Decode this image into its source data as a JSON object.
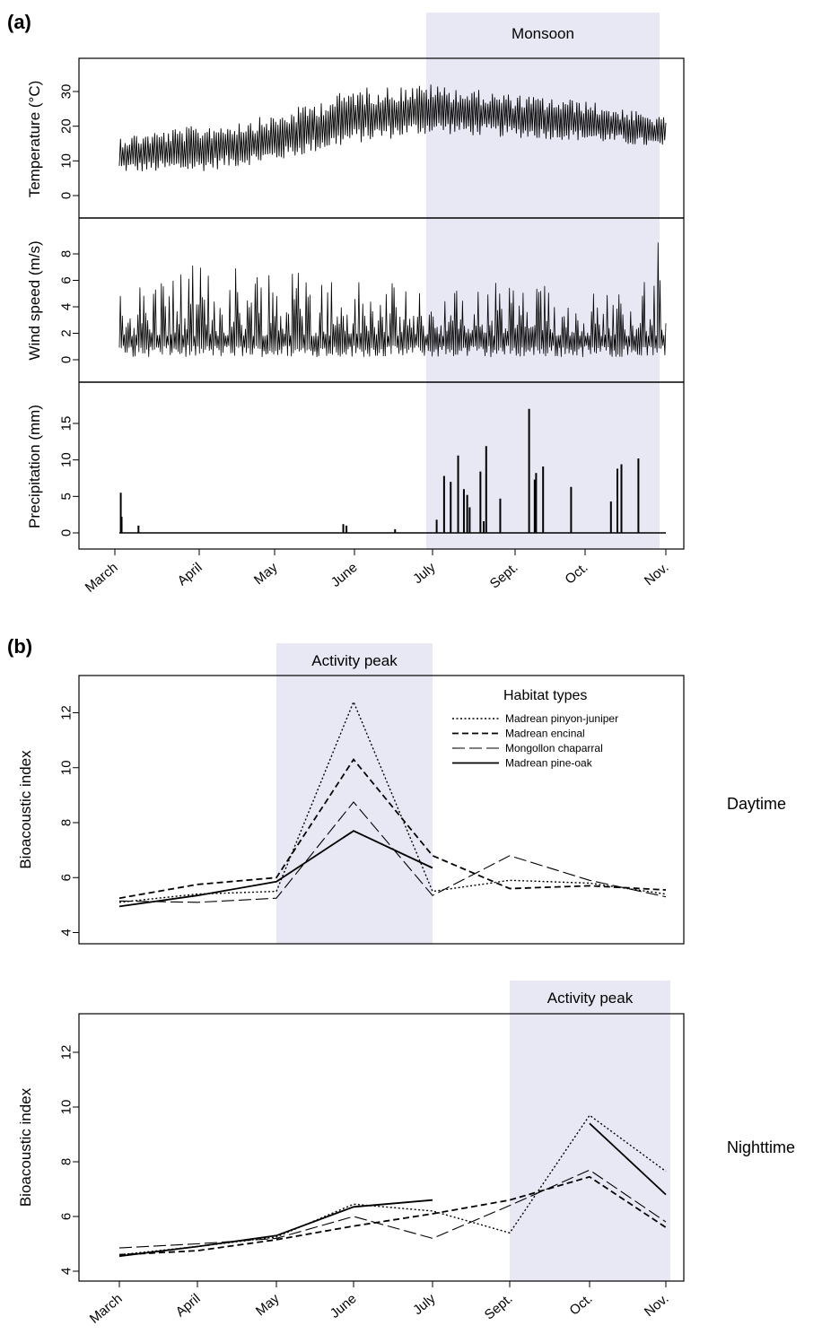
{
  "panel_a": {
    "label": "(a)",
    "shade_label": "Monsoon",
    "x_months": [
      "March",
      "April",
      "May",
      "June",
      "July",
      "Sept.",
      "Oct.",
      "Nov."
    ]
  },
  "panel_b": {
    "label": "(b)"
  },
  "colors": {
    "shade": "#e8e8f4",
    "line": "#000000"
  },
  "chart_data": [
    {
      "type": "line",
      "panel": "(a)",
      "ylabel": "Temperature (°C)",
      "ylim": [
        -2,
        38
      ],
      "yticks": [
        0,
        10,
        20,
        30
      ],
      "categories": [
        "March",
        "April",
        "May",
        "June",
        "July",
        "Sept.",
        "Oct.",
        "Nov."
      ],
      "shaded_region": {
        "label": "Monsoon",
        "from": "July",
        "to": "Nov."
      },
      "series": [
        {
          "values_daily_low": [
            6,
            6,
            9,
            14,
            17,
            16,
            15,
            13
          ],
          "values_daily_high": [
            18,
            21,
            24,
            32,
            33,
            30,
            28,
            23
          ]
        }
      ]
    },
    {
      "type": "line",
      "panel": "(a)",
      "ylabel": "Wind speed (m/s)",
      "ylim": [
        -0.5,
        9.8
      ],
      "yticks": [
        0,
        2,
        4,
        6,
        8
      ],
      "categories": [
        "March",
        "April",
        "May",
        "June",
        "July",
        "Sept.",
        "Oct.",
        "Nov."
      ],
      "series": [
        {
          "values_typical_peak": [
            6,
            7,
            8,
            6,
            5,
            6,
            5,
            6
          ],
          "max": 9.5
        }
      ]
    },
    {
      "type": "bar",
      "panel": "(a)",
      "ylabel": "Precipitation (mm)",
      "ylim": [
        -1,
        19
      ],
      "yticks": [
        0,
        5,
        10,
        15
      ],
      "categories": [
        "March",
        "April",
        "May",
        "June",
        "July",
        "Sept.",
        "Oct.",
        "Nov."
      ],
      "events": [
        {
          "x": "March",
          "values": [
            5.5,
            2.2,
            1.0
          ]
        },
        {
          "x": "May",
          "values": [
            1.2,
            1.0
          ]
        },
        {
          "x": "June",
          "values": [
            0.5
          ]
        },
        {
          "x": "July",
          "values": [
            1.8,
            7.8,
            7.0,
            10.6,
            3.5,
            8.4
          ]
        },
        {
          "x": "Sept.",
          "values": [
            6.0,
            5.2,
            1.6,
            11.9,
            4.7,
            17.0,
            8.2
          ]
        },
        {
          "x": "Oct.",
          "values": [
            7.3,
            9.1,
            6.3,
            4.3
          ]
        },
        {
          "x": "Nov.",
          "values": [
            8.8,
            9.4,
            10.2
          ]
        }
      ]
    },
    {
      "type": "line",
      "panel": "(b)",
      "side_label": "Daytime",
      "ylabel": "Bioacoustic index",
      "ylim": [
        3.6,
        13.3
      ],
      "yticks": [
        4,
        6,
        8,
        10,
        12
      ],
      "categories": [
        "March",
        "April",
        "May",
        "June",
        "July",
        "Sept.",
        "Oct.",
        "Nov."
      ],
      "shaded_region": {
        "label": "Activity peak",
        "from": "May",
        "to": "July"
      },
      "legend": {
        "title": "Habitat types",
        "placement": "top-right"
      },
      "series": [
        {
          "name": "Madrean pinyon-juniper",
          "style": "dotted",
          "values": [
            5.1,
            5.4,
            5.5,
            12.4,
            5.5,
            5.9,
            5.8,
            5.4
          ]
        },
        {
          "name": "Madrean encinal",
          "style": "dashed",
          "values": [
            5.25,
            5.75,
            6.0,
            10.3,
            6.8,
            5.6,
            5.7,
            5.55
          ]
        },
        {
          "name": "Mongollon chaparral",
          "style": "longdash",
          "values": [
            5.15,
            5.1,
            5.25,
            8.75,
            5.35,
            6.8,
            5.9,
            5.3
          ]
        },
        {
          "name": "Madrean pine-oak",
          "style": "solid",
          "values": [
            4.95,
            5.35,
            5.85,
            7.7,
            6.35,
            null,
            null,
            null
          ]
        }
      ]
    },
    {
      "type": "line",
      "panel": "(b)",
      "side_label": "Nighttime",
      "ylabel": "Bioacoustic index",
      "ylim": [
        3.6,
        13.3
      ],
      "yticks": [
        4,
        6,
        8,
        10,
        12
      ],
      "categories": [
        "March",
        "April",
        "May",
        "June",
        "July",
        "Sept.",
        "Oct.",
        "Nov."
      ],
      "shaded_region": {
        "label": "Activity peak",
        "from": "Sept.",
        "to": "Nov."
      },
      "series": [
        {
          "name": "Madrean pinyon-juniper",
          "style": "dotted",
          "values": [
            4.6,
            4.9,
            5.25,
            6.45,
            6.2,
            5.4,
            9.7,
            7.65
          ]
        },
        {
          "name": "Madrean encinal",
          "style": "dashed",
          "values": [
            4.6,
            4.75,
            5.15,
            5.65,
            6.1,
            6.6,
            7.45,
            5.6
          ]
        },
        {
          "name": "Mongollon chaparral",
          "style": "longdash",
          "values": [
            4.85,
            5.0,
            5.2,
            6.0,
            5.2,
            6.4,
            7.7,
            5.8
          ]
        },
        {
          "name": "Madrean pine-oak",
          "style": "solid",
          "values": [
            4.55,
            4.9,
            5.3,
            6.35,
            6.6,
            null,
            9.4,
            6.8
          ]
        }
      ]
    }
  ]
}
